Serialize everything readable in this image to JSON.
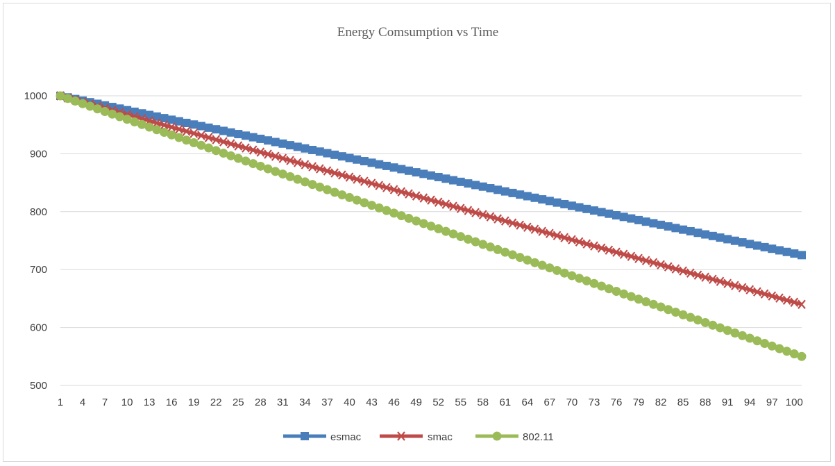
{
  "chart_data": {
    "type": "line",
    "title": "Energy Comsumption vs Time",
    "xlabel": "",
    "ylabel": "",
    "ylim": [
      500,
      1000
    ],
    "yticks": [
      500,
      600,
      700,
      800,
      900,
      1000
    ],
    "x": {
      "start": 1,
      "end": 101,
      "step": 1
    },
    "xtick_labels": [
      "1",
      "4",
      "7",
      "10",
      "13",
      "16",
      "19",
      "22",
      "25",
      "28",
      "31",
      "34",
      "37",
      "40",
      "43",
      "46",
      "49",
      "52",
      "55",
      "58",
      "61",
      "64",
      "67",
      "70",
      "73",
      "76",
      "79",
      "82",
      "85",
      "88",
      "91",
      "94",
      "97",
      "100"
    ],
    "grid": "horizontal",
    "legend_position": "bottom",
    "series": [
      {
        "name": "esmac",
        "color": "#4a7ebb",
        "marker": "square",
        "start_value": 1000,
        "end_value": 725
      },
      {
        "name": "smac",
        "color": "#be4b48",
        "marker": "x",
        "start_value": 1000,
        "end_value": 640
      },
      {
        "name": "802.11",
        "color": "#9bbb59",
        "marker": "circle",
        "start_value": 1000,
        "end_value": 550
      }
    ]
  }
}
